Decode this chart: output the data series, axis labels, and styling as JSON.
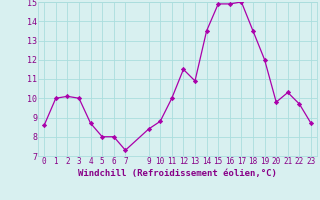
{
  "x": [
    0,
    1,
    2,
    3,
    4,
    5,
    6,
    7,
    9,
    10,
    11,
    12,
    13,
    14,
    15,
    16,
    17,
    18,
    19,
    20,
    21,
    22,
    23
  ],
  "y": [
    8.6,
    10.0,
    10.1,
    10.0,
    8.7,
    8.0,
    8.0,
    7.3,
    8.4,
    8.8,
    10.0,
    11.5,
    10.9,
    13.5,
    14.9,
    14.9,
    15.0,
    13.5,
    12.0,
    9.8,
    10.3,
    9.7,
    8.7
  ],
  "line_color": "#aa00aa",
  "marker": "D",
  "marker_size": 2.2,
  "xlabel": "Windchill (Refroidissement éolien,°C)",
  "xlabel_fontsize": 6.5,
  "bg_color": "#d8f0f0",
  "grid_color": "#aadddd",
  "tick_color": "#880088",
  "label_color": "#880088",
  "ylim": [
    7,
    15
  ],
  "yticks": [
    7,
    8,
    9,
    10,
    11,
    12,
    13,
    14,
    15
  ],
  "xticks": [
    0,
    1,
    2,
    3,
    4,
    5,
    6,
    7,
    9,
    10,
    11,
    12,
    13,
    14,
    15,
    16,
    17,
    18,
    19,
    20,
    21,
    22,
    23
  ],
  "tick_fontsize": 5.5,
  "ytick_fontsize": 6.0
}
